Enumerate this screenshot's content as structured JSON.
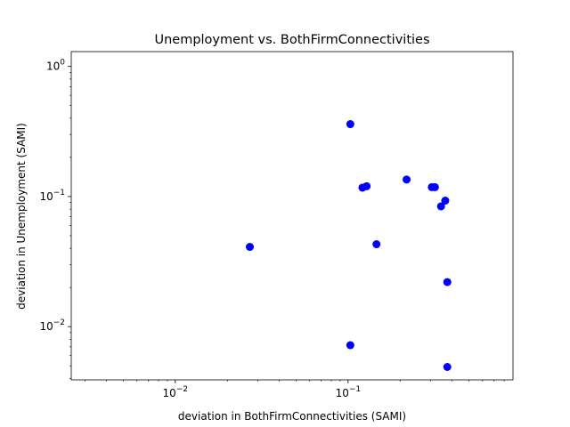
{
  "chart_data": {
    "type": "scatter",
    "title": "Unemployment vs. BothFirmConnectivities",
    "xlabel": "deviation in BothFirmConnectivities (SAMI)",
    "ylabel": "deviation in Unemployment (SAMI)",
    "xscale": "log",
    "yscale": "log",
    "xlim": [
      0.0025,
      0.9
    ],
    "ylim": [
      0.0039,
      1.3
    ],
    "grid": false,
    "marker_color": "#0000ff",
    "x_ticks": [
      {
        "value": 0.01,
        "base": "10",
        "exp": "−2"
      },
      {
        "value": 0.1,
        "base": "10",
        "exp": "−1"
      }
    ],
    "y_ticks": [
      {
        "value": 0.01,
        "base": "10",
        "exp": "−2"
      },
      {
        "value": 0.1,
        "base": "10",
        "exp": "−1"
      },
      {
        "value": 1,
        "base": "10",
        "exp": "0"
      }
    ],
    "points": [
      {
        "x": 0.027,
        "y": 0.041
      },
      {
        "x": 0.103,
        "y": 0.36
      },
      {
        "x": 0.103,
        "y": 0.0072
      },
      {
        "x": 0.121,
        "y": 0.117
      },
      {
        "x": 0.128,
        "y": 0.12
      },
      {
        "x": 0.146,
        "y": 0.043
      },
      {
        "x": 0.218,
        "y": 0.135
      },
      {
        "x": 0.305,
        "y": 0.118
      },
      {
        "x": 0.318,
        "y": 0.118
      },
      {
        "x": 0.345,
        "y": 0.084
      },
      {
        "x": 0.365,
        "y": 0.093
      },
      {
        "x": 0.375,
        "y": 0.022
      },
      {
        "x": 0.375,
        "y": 0.0049
      }
    ]
  }
}
